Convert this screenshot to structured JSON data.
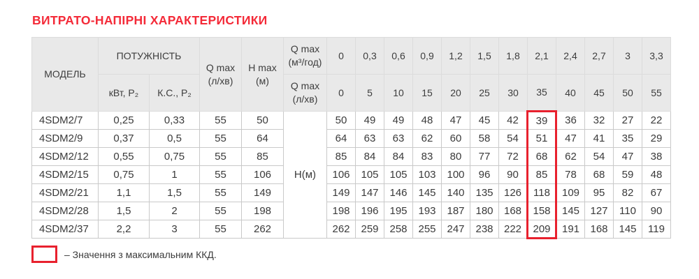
{
  "colors": {
    "title_red": "#f42a38",
    "highlight_red": "#e8212e",
    "header_bg": "#e9e9e9",
    "text": "#3b3b3b"
  },
  "title": "ВИТРАТО-НАПІРНІ ХАРАКТЕРИСТИКИ",
  "table": {
    "header": {
      "model": "МОДЕЛЬ",
      "power": "ПОТУЖНІСТЬ",
      "power_kw": "кВт, P₂",
      "power_hp": "К.С., P₂",
      "qmax_lmin": "Q max\n(л/хв)",
      "hmax_m": "H max\n(м)",
      "flow_m3h_label": "Q max\n(м³/год)",
      "flow_lmin_label": "Q max\n(л/хв)",
      "flow_m3h_values": [
        "0",
        "0,3",
        "0,6",
        "0,9",
        "1,2",
        "1,5",
        "1,8",
        "2,1",
        "2,4",
        "2,7",
        "3",
        "3,3"
      ],
      "flow_lmin_values": [
        "0",
        "5",
        "10",
        "15",
        "20",
        "25",
        "30",
        "35",
        "40",
        "45",
        "50",
        "55"
      ]
    },
    "h_column_label": "Н(м)",
    "highlight_col_index": 7,
    "rows": [
      {
        "model": "4SDM2/7",
        "kw": "0,25",
        "hp": "0,33",
        "qmax": "55",
        "hmax": "50",
        "h": [
          "50",
          "49",
          "49",
          "48",
          "47",
          "45",
          "42",
          "39",
          "36",
          "32",
          "27",
          "22"
        ]
      },
      {
        "model": "4SDM2/9",
        "kw": "0,37",
        "hp": "0,5",
        "qmax": "55",
        "hmax": "64",
        "h": [
          "64",
          "63",
          "63",
          "62",
          "60",
          "58",
          "54",
          "51",
          "47",
          "41",
          "35",
          "29"
        ]
      },
      {
        "model": "4SDM2/12",
        "kw": "0,55",
        "hp": "0,75",
        "qmax": "55",
        "hmax": "85",
        "h": [
          "85",
          "84",
          "84",
          "83",
          "80",
          "77",
          "72",
          "68",
          "62",
          "54",
          "47",
          "38"
        ]
      },
      {
        "model": "4SDM2/15",
        "kw": "0,75",
        "hp": "1",
        "qmax": "55",
        "hmax": "106",
        "h": [
          "106",
          "105",
          "105",
          "103",
          "100",
          "96",
          "90",
          "85",
          "78",
          "68",
          "59",
          "48"
        ]
      },
      {
        "model": "4SDM2/21",
        "kw": "1,1",
        "hp": "1,5",
        "qmax": "55",
        "hmax": "149",
        "h": [
          "149",
          "147",
          "146",
          "145",
          "140",
          "135",
          "126",
          "118",
          "109",
          "95",
          "82",
          "67"
        ]
      },
      {
        "model": "4SDM2/28",
        "kw": "1,5",
        "hp": "2",
        "qmax": "55",
        "hmax": "198",
        "h": [
          "198",
          "196",
          "195",
          "193",
          "187",
          "180",
          "168",
          "158",
          "145",
          "127",
          "110",
          "90"
        ]
      },
      {
        "model": "4SDM2/37",
        "kw": "2,2",
        "hp": "3",
        "qmax": "55",
        "hmax": "262",
        "h": [
          "262",
          "259",
          "258",
          "255",
          "247",
          "238",
          "222",
          "209",
          "191",
          "168",
          "145",
          "119"
        ]
      }
    ]
  },
  "legend": {
    "text": "– Значення з максимальним ККД."
  }
}
